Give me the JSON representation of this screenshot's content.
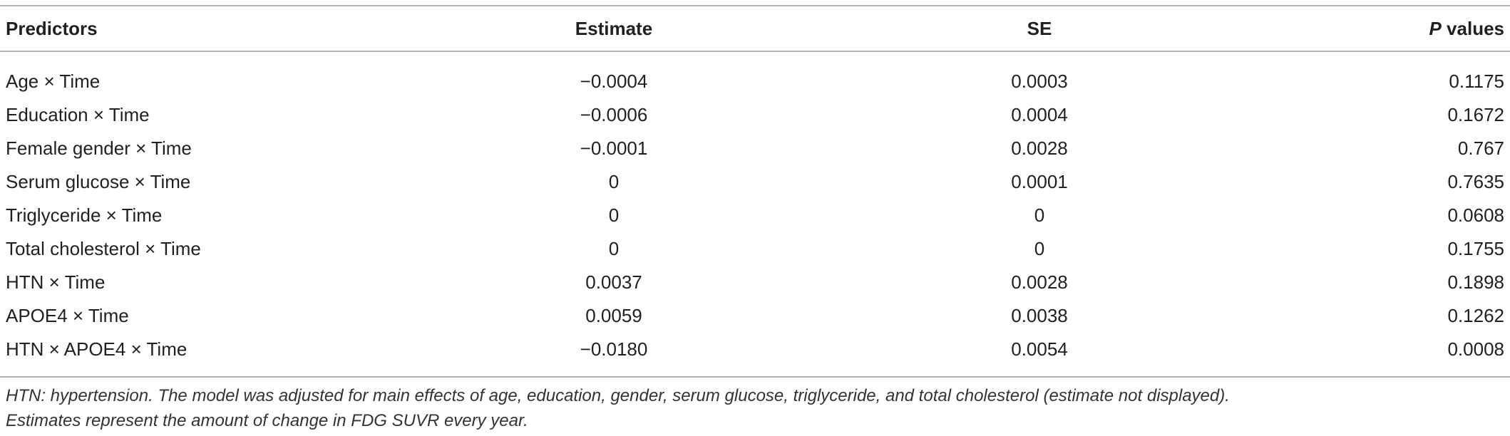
{
  "table": {
    "headers": [
      "Predictors",
      "Estimate",
      "SE",
      {
        "italic": "P",
        "text": "values"
      }
    ],
    "rows": [
      [
        "Age × Time",
        "−0.0004",
        "0.0003",
        "0.1175"
      ],
      [
        "Education × Time",
        "−0.0006",
        "0.0004",
        "0.1672"
      ],
      [
        "Female gender × Time",
        "−0.0001",
        "0.0028",
        "0.767"
      ],
      [
        "Serum glucose × Time",
        "0",
        "0.0001",
        "0.7635"
      ],
      [
        "Triglyceride × Time",
        "0",
        "0",
        "0.0608"
      ],
      [
        "Total cholesterol × Time",
        "0",
        "0",
        "0.1755"
      ],
      [
        "HTN × Time",
        "0.0037",
        "0.0028",
        "0.1898"
      ],
      [
        "APOE4 × Time",
        "0.0059",
        "0.0038",
        "0.1262"
      ],
      [
        "HTN × APOE4 × Time",
        "−0.0180",
        "0.0054",
        "0.0008"
      ]
    ],
    "footnote": [
      "HTN: hypertension. The model was adjusted for main effects of age, education, gender, serum glucose, triglyceride, and total cholesterol (estimate not displayed).",
      "Estimates represent the amount of change in FDG SUVR every year."
    ]
  }
}
